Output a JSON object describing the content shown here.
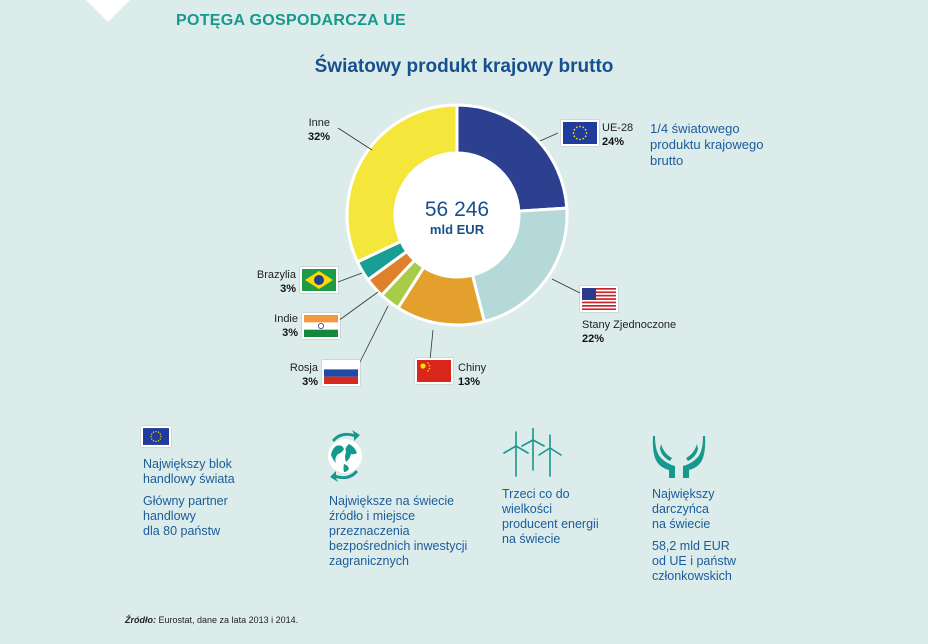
{
  "header": {
    "section_title": "POTĘGA GOSPODARCZA UE"
  },
  "chart_data": {
    "type": "pie",
    "title": "Światowy produkt krajowy brutto",
    "center_value": "56 246",
    "center_unit": "mld EUR",
    "slices": [
      {
        "label": "UE-28",
        "value": 24,
        "value_label": "24%",
        "color": "#2d3f8f"
      },
      {
        "label": "Stany Zjednoczone",
        "value": 22,
        "value_label": "22%",
        "color": "#b5d9d8"
      },
      {
        "label": "Chiny",
        "value": 13,
        "value_label": "13%",
        "color": "#e3a02c"
      },
      {
        "label": "Rosja",
        "value": 3,
        "value_label": "3%",
        "color": "#a8cc48"
      },
      {
        "label": "Indie",
        "value": 3,
        "value_label": "3%",
        "color": "#e0802a"
      },
      {
        "label": "Brazylia",
        "value": 3,
        "value_label": "3%",
        "color": "#189e94"
      },
      {
        "label": "Inne",
        "value": 32,
        "value_label": "32%",
        "color": "#f5e63c"
      }
    ],
    "annotation": "1/4 światowego produktu krajowego brutto"
  },
  "flags": [
    "eu-flag-icon",
    "us-flag-icon",
    "china-flag-icon",
    "russia-flag-icon",
    "india-flag-icon",
    "brazil-flag-icon"
  ],
  "facts": [
    {
      "icon": "eu-flag-icon",
      "lines": [
        "Największy blok",
        "handlowy świata",
        "Główny partner",
        "handlowy",
        "dla 80 państw"
      ]
    },
    {
      "icon": "globe-arrows-icon",
      "lines": [
        "Największe na świecie",
        "źródło i miejsce",
        "przeznaczenia",
        "bezpośrednich inwestycji",
        "zagranicznych"
      ]
    },
    {
      "icon": "wind-turbines-icon",
      "lines": [
        "Trzeci co do",
        "wielkości",
        "producent energii",
        "na świecie"
      ]
    },
    {
      "icon": "giving-hands-icon",
      "lines": [
        "Największy",
        "darczyńca",
        "na świecie",
        "58,2 mld EUR",
        "od UE i państw",
        "członkowskich"
      ]
    }
  ],
  "source": {
    "label": "Źródło:",
    "text": "Eurostat, dane za lata 2013 i 2014."
  }
}
